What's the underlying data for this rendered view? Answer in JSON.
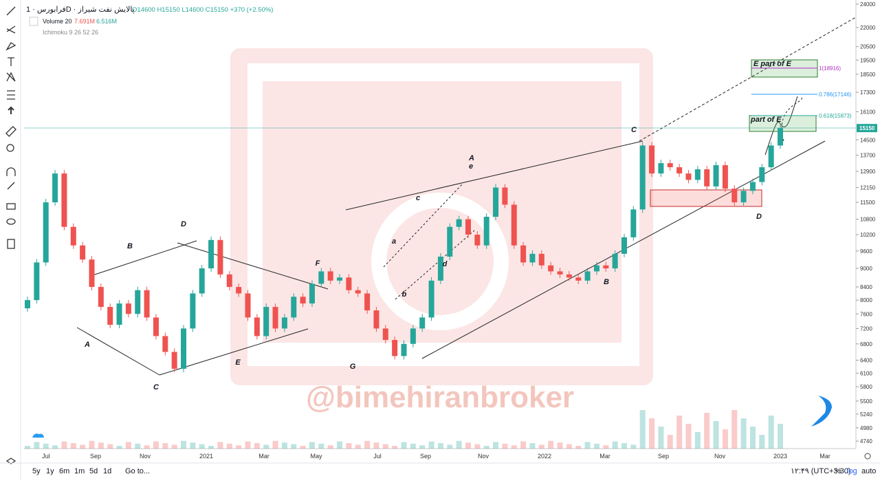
{
  "chart_data": {
    "type": "candlestick",
    "log": true,
    "legend": {
      "symbol": "فرابورس · 1D · پالایش نفت شیراز",
      "ohlc": "O14600 H15150 L14600 C15150 +370 (+2.50%)",
      "volume": "Volume 20",
      "vol1": "7.691M",
      "vol2": "6.516M",
      "ichimoku": "Ichimoku 9 26 52 26"
    },
    "ylim": [
      4610,
      24370
    ],
    "yticks": [
      24000,
      22000,
      20500,
      19500,
      18500,
      17300,
      16100,
      14500,
      13700,
      12900,
      12150,
      11500,
      10800,
      10200,
      9600,
      9000,
      8400,
      8000,
      7600,
      7200,
      6800,
      6400,
      6100,
      5800,
      5500,
      5240,
      4980,
      4740
    ],
    "last_price": 15150,
    "x_labels": [
      "Jul",
      "Sep",
      "Nov",
      "2021",
      "Mar",
      "May",
      "Jul",
      "Sep",
      "Nov",
      "2022",
      "Mar",
      "Sep",
      "Nov",
      "2023",
      "Mar"
    ],
    "closes": [
      8000,
      9200,
      11500,
      12800,
      10500,
      9800,
      9300,
      8400,
      7800,
      7300,
      7900,
      7600,
      8300,
      7500,
      7000,
      6600,
      6200,
      7200,
      8200,
      9000,
      10000,
      8800,
      8400,
      8200,
      7500,
      7000,
      7800,
      7200,
      7500,
      8100,
      7900,
      8500,
      8900,
      8600,
      8700,
      8300,
      8200,
      7700,
      7200,
      6900,
      6500,
      6800,
      7200,
      7500,
      8600,
      9400,
      10500,
      10800,
      10200,
      9800,
      10900,
      12150,
      11400,
      9800,
      9200,
      9500,
      9100,
      8900,
      8800,
      8700,
      8600,
      8900,
      9100,
      9000,
      9500,
      10100,
      11200,
      14200,
      12800,
      13300,
      13100,
      12800,
      12500,
      13000,
      12200,
      13200,
      12100,
      11500,
      12000,
      12400,
      13100,
      14200,
      15150
    ],
    "wave_labels": [
      "A",
      "B",
      "C",
      "D",
      "E",
      "F",
      "G",
      "a",
      "b",
      "c",
      "d",
      "A",
      "e",
      "C",
      "B",
      "D"
    ],
    "fib": [
      "1(18916)",
      "0.786(17146)",
      "0.618(15873)"
    ],
    "boxes": [
      "E part of E",
      "part of E"
    ],
    "watermark": "@bimehiranbroker",
    "bottom": {
      "ranges": [
        "5y",
        "1y",
        "6m",
        "1m",
        "5d",
        "1d"
      ],
      "goto": "Go to...",
      "time": "۱۲:۴۹ (UTC+3:30)",
      "pct": "%",
      "log": "log",
      "auto": "auto"
    }
  }
}
